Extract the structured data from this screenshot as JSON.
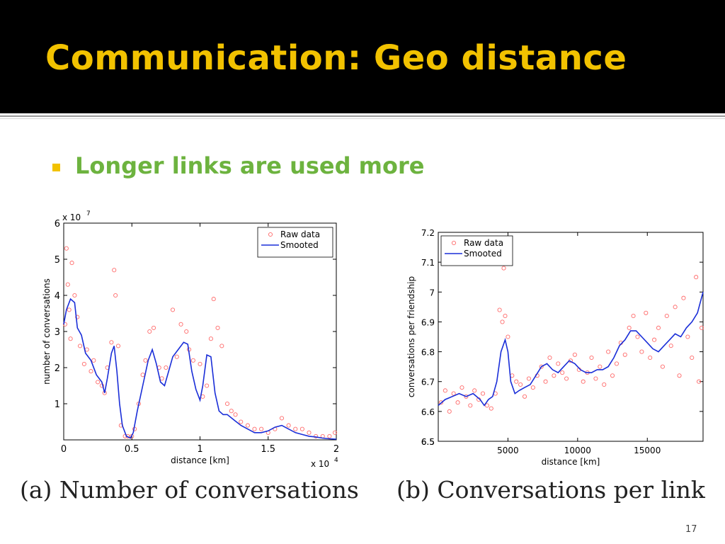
{
  "slide": {
    "title": "Communication: Geo distance",
    "bullet": "Longer links are used more",
    "slide_number": "17",
    "colors": {
      "title": "#f2c200",
      "bullet_text": "#6db33f",
      "bullet_marker": "#f2c200"
    }
  },
  "chart_data": [
    {
      "type": "line",
      "caption": "(a) Number of conversations",
      "xlabel": "distance [km]",
      "ylabel": "number of conversations",
      "x_multiplier": "x 10",
      "x_multiplier_exp": "4",
      "y_multiplier": "x 10",
      "y_multiplier_exp": "7",
      "xlim": [
        0,
        20000
      ],
      "ylim": [
        0,
        6
      ],
      "x_ticks": [
        0,
        5000,
        10000,
        15000,
        20000
      ],
      "x_tick_labels": [
        "0",
        "0.5",
        "1",
        "1.5",
        "2"
      ],
      "y_ticks": [
        1,
        2,
        3,
        4,
        5,
        6
      ],
      "y_tick_labels": [
        "1",
        "2",
        "3",
        "4",
        "5",
        "6"
      ],
      "legend": [
        "Raw data",
        "Smooted"
      ],
      "legend_position": "top-right",
      "series": [
        {
          "name": "Raw data",
          "style": "marker",
          "color": "#ff6b6b",
          "x": [
            100,
            200,
            300,
            400,
            500,
            600,
            800,
            1000,
            1200,
            1500,
            1700,
            2000,
            2200,
            2500,
            2800,
            3000,
            3200,
            3500,
            3700,
            3800,
            4000,
            4200,
            4500,
            4700,
            5000,
            5200,
            5500,
            5800,
            6000,
            6300,
            6600,
            7000,
            7200,
            7500,
            8000,
            8300,
            8600,
            9000,
            9200,
            9500,
            10000,
            10200,
            10500,
            10800,
            11000,
            11300,
            11600,
            12000,
            12300,
            12600,
            13000,
            13500,
            14000,
            14500,
            15000,
            15500,
            16000,
            16500,
            17000,
            17500,
            18000,
            18500,
            19000,
            19500,
            19900
          ],
          "y": [
            3.2,
            5.3,
            4.3,
            3.6,
            2.8,
            4.9,
            4.0,
            3.4,
            2.6,
            2.1,
            2.5,
            1.9,
            2.2,
            1.6,
            1.5,
            1.3,
            2.0,
            2.7,
            4.7,
            4.0,
            2.6,
            0.4,
            0.1,
            0.1,
            0.1,
            0.3,
            1.0,
            1.8,
            2.2,
            3.0,
            3.1,
            2.0,
            1.7,
            2.0,
            3.6,
            2.3,
            3.2,
            3.0,
            2.5,
            2.2,
            2.1,
            1.2,
            1.5,
            2.8,
            3.9,
            3.1,
            2.6,
            1.0,
            0.8,
            0.7,
            0.5,
            0.4,
            0.3,
            0.3,
            0.2,
            0.3,
            0.6,
            0.4,
            0.3,
            0.3,
            0.2,
            0.1,
            0.1,
            0.1,
            0.2
          ]
        },
        {
          "name": "Smooted",
          "style": "line",
          "color": "#1a2ed8",
          "x": [
            0,
            200,
            500,
            800,
            1000,
            1300,
            1600,
            2000,
            2400,
            2800,
            3000,
            3200,
            3500,
            3700,
            3900,
            4100,
            4300,
            4600,
            4900,
            5100,
            5400,
            5800,
            6200,
            6500,
            6800,
            7100,
            7400,
            7700,
            8000,
            8400,
            8800,
            9100,
            9400,
            9700,
            10000,
            10200,
            10500,
            10800,
            11100,
            11400,
            11700,
            12000,
            12500,
            13000,
            13500,
            14000,
            14500,
            15000,
            15500,
            16000,
            16500,
            17000,
            17500,
            18000,
            18500,
            19000,
            19500,
            20000
          ],
          "y": [
            3.2,
            3.6,
            3.9,
            3.8,
            3.1,
            2.9,
            2.4,
            2.2,
            1.8,
            1.6,
            1.3,
            1.7,
            2.4,
            2.6,
            1.9,
            1.0,
            0.4,
            0.1,
            0.05,
            0.2,
            0.8,
            1.5,
            2.2,
            2.5,
            2.1,
            1.6,
            1.5,
            1.9,
            2.3,
            2.5,
            2.7,
            2.65,
            1.9,
            1.4,
            1.1,
            1.5,
            2.35,
            2.3,
            1.3,
            0.8,
            0.7,
            0.7,
            0.55,
            0.4,
            0.3,
            0.2,
            0.2,
            0.25,
            0.35,
            0.4,
            0.3,
            0.2,
            0.15,
            0.1,
            0.08,
            0.05,
            0.03,
            0.02
          ]
        }
      ]
    },
    {
      "type": "line",
      "caption": "(b) Conversations per link",
      "xlabel": "distance [km]",
      "ylabel": "conversations per friendship",
      "xlim": [
        0,
        19000
      ],
      "ylim": [
        6.5,
        7.2
      ],
      "x_ticks": [
        5000,
        10000,
        15000
      ],
      "x_tick_labels": [
        "5000",
        "10000",
        "15000"
      ],
      "y_ticks": [
        6.5,
        6.6,
        6.7,
        6.8,
        6.9,
        7.0,
        7.1,
        7.2
      ],
      "y_tick_labels": [
        "6.5",
        "6.6",
        "6.7",
        "6.8",
        "6.9",
        "7",
        "7.1",
        "7.2"
      ],
      "legend": [
        "Raw data",
        "Smooted"
      ],
      "legend_position": "top-left",
      "series": [
        {
          "name": "Raw data",
          "style": "marker",
          "color": "#ff6b6b",
          "x": [
            200,
            500,
            800,
            1100,
            1400,
            1700,
            2000,
            2300,
            2600,
            2900,
            3200,
            3500,
            3800,
            4100,
            4400,
            4600,
            4700,
            4800,
            5000,
            5300,
            5600,
            5900,
            6200,
            6500,
            6800,
            7100,
            7400,
            7700,
            8000,
            8300,
            8600,
            8900,
            9200,
            9500,
            9800,
            10100,
            10400,
            10700,
            11000,
            11300,
            11600,
            11900,
            12200,
            12500,
            12800,
            13100,
            13400,
            13700,
            14000,
            14300,
            14600,
            14900,
            15200,
            15500,
            15800,
            16100,
            16400,
            16700,
            17000,
            17300,
            17600,
            17900,
            18200,
            18500,
            18700,
            18900
          ],
          "y": [
            6.63,
            6.67,
            6.6,
            6.66,
            6.63,
            6.68,
            6.65,
            6.62,
            6.67,
            6.64,
            6.66,
            6.62,
            6.61,
            6.66,
            6.94,
            6.9,
            7.08,
            6.92,
            6.85,
            6.72,
            6.7,
            6.69,
            6.65,
            6.71,
            6.68,
            6.72,
            6.75,
            6.7,
            6.78,
            6.72,
            6.76,
            6.73,
            6.71,
            6.77,
            6.79,
            6.74,
            6.7,
            6.73,
            6.78,
            6.71,
            6.75,
            6.69,
            6.8,
            6.72,
            6.76,
            6.83,
            6.79,
            6.88,
            6.92,
            6.85,
            6.8,
            6.93,
            6.78,
            6.84,
            6.88,
            6.75,
            6.92,
            6.82,
            6.95,
            6.72,
            6.98,
            6.85,
            6.78,
            7.05,
            6.7,
            6.88
          ]
        },
        {
          "name": "Smooted",
          "style": "line",
          "color": "#1a2ed8",
          "x": [
            0,
            500,
            1000,
            1500,
            2000,
            2500,
            3000,
            3300,
            3600,
            3900,
            4200,
            4500,
            4800,
            5000,
            5200,
            5500,
            5800,
            6200,
            6600,
            7000,
            7400,
            7800,
            8200,
            8600,
            9000,
            9400,
            9800,
            10200,
            10600,
            11000,
            11400,
            11800,
            12200,
            12600,
            13000,
            13400,
            13800,
            14200,
            14600,
            15000,
            15400,
            15800,
            16200,
            16600,
            17000,
            17400,
            17800,
            18200,
            18600,
            19000
          ],
          "y": [
            6.62,
            6.64,
            6.65,
            6.66,
            6.65,
            6.66,
            6.64,
            6.62,
            6.64,
            6.65,
            6.7,
            6.8,
            6.84,
            6.8,
            6.7,
            6.66,
            6.67,
            6.68,
            6.69,
            6.72,
            6.75,
            6.76,
            6.74,
            6.73,
            6.75,
            6.77,
            6.76,
            6.74,
            6.73,
            6.73,
            6.74,
            6.74,
            6.75,
            6.78,
            6.82,
            6.84,
            6.87,
            6.87,
            6.85,
            6.83,
            6.81,
            6.8,
            6.82,
            6.84,
            6.86,
            6.85,
            6.88,
            6.9,
            6.93,
            7.0
          ]
        }
      ]
    }
  ]
}
